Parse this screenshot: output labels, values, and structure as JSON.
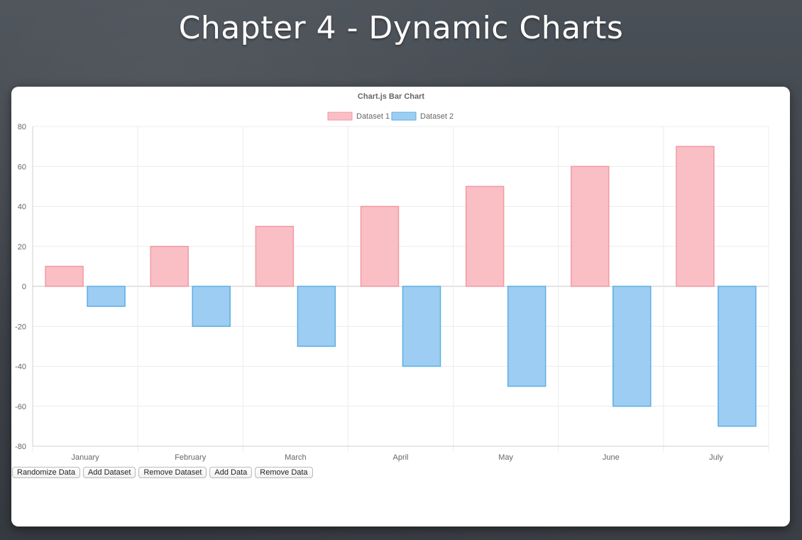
{
  "slide": {
    "title": "Chapter 4 - Dynamic Charts"
  },
  "colors": {
    "dataset1_fill": "#f9bfc4",
    "dataset1_stroke": "#f29aa3",
    "dataset2_fill": "#9dcdf2",
    "dataset2_stroke": "#5eaee3"
  },
  "controls": {
    "randomize": "Randomize Data",
    "add_dataset": "Add Dataset",
    "remove_dataset": "Remove Dataset",
    "add_data": "Add Data",
    "remove_data": "Remove Data"
  },
  "chart_data": {
    "type": "bar",
    "title": "Chart.js Bar Chart",
    "categories": [
      "January",
      "February",
      "March",
      "April",
      "May",
      "June",
      "July"
    ],
    "series": [
      {
        "name": "Dataset 1",
        "values": [
          10,
          20,
          30,
          40,
          50,
          60,
          70
        ],
        "color": "#f9bfc4"
      },
      {
        "name": "Dataset 2",
        "values": [
          -10,
          -20,
          -30,
          -40,
          -50,
          -60,
          -70
        ],
        "color": "#9dcdf2"
      }
    ],
    "ylim": [
      -80,
      80
    ],
    "yticks": [
      "80",
      "60",
      "40",
      "20",
      "0",
      "-20",
      "-40",
      "-60",
      "-80"
    ],
    "grid": true,
    "legend": "top-center"
  }
}
